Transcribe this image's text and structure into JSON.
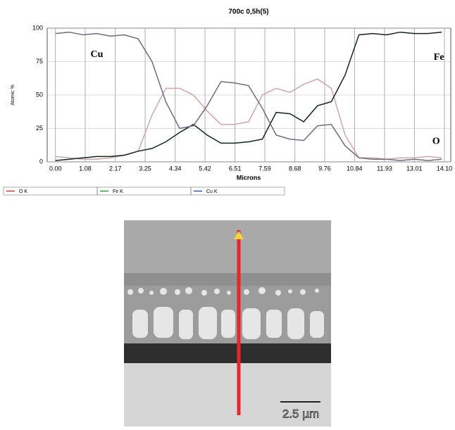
{
  "chart_data": {
    "type": "line",
    "title": "700c 0,5h(5)",
    "x_label": "Microns",
    "y_label": "Atomic %",
    "x": [
      0,
      0.5,
      1,
      1.5,
      2,
      2.5,
      3,
      3.5,
      4,
      4.5,
      5,
      5.5,
      6,
      6.5,
      7,
      7.5,
      8,
      8.5,
      9,
      9.5,
      10,
      10.5,
      11,
      11.5,
      12,
      12.5,
      13,
      13.5,
      14
    ],
    "series": [
      {
        "name": "O K",
        "color": "#d2a4a4",
        "legend_color": "#e03030",
        "values": [
          4,
          3,
          2,
          2,
          3,
          5,
          8,
          35,
          55,
          55,
          50,
          38,
          28,
          28,
          30,
          50,
          55,
          52,
          58,
          62,
          55,
          20,
          3,
          3,
          2,
          3,
          3,
          4,
          3
        ]
      },
      {
        "name": "Fe K",
        "color": "#10281a",
        "legend_color": "#30a030",
        "values": [
          1,
          2,
          3,
          4,
          4,
          5,
          8,
          10,
          15,
          22,
          28,
          20,
          14,
          14,
          15,
          17,
          37,
          36,
          30,
          42,
          45,
          65,
          95,
          96,
          95,
          97,
          96,
          96,
          97
        ]
      },
      {
        "name": "Cu K",
        "color": "#6c6c84",
        "legend_color": "#3050c0",
        "values": [
          96,
          97,
          95,
          96,
          94,
          95,
          92,
          75,
          45,
          25,
          27,
          42,
          60,
          59,
          57,
          40,
          20,
          17,
          16,
          27,
          28,
          12,
          3,
          2,
          2,
          1,
          2,
          1,
          2
        ]
      }
    ],
    "xlim": [
      -0.3,
      14.33
    ],
    "ylim": [
      0,
      100
    ],
    "xticks": [
      {
        "value": 0,
        "label": "0.00"
      },
      1.08,
      2.17,
      3.25,
      4.34,
      5.42,
      6.51,
      7.59,
      8.68,
      9.76,
      10.84,
      11.93,
      13.01,
      {
        "value": 14.1,
        "label": "14.10"
      }
    ],
    "yticks": [
      0,
      25,
      50,
      75,
      100
    ],
    "grid": true,
    "annotations": [
      {
        "text": "Cu",
        "x": 1.5,
        "y": 80
      },
      {
        "text": "Fe",
        "x": 13.9,
        "y": 78
      },
      {
        "text": "O",
        "x": 13.8,
        "y": 15
      }
    ]
  },
  "micrograph": {
    "scale_label": "2.5 µm"
  }
}
